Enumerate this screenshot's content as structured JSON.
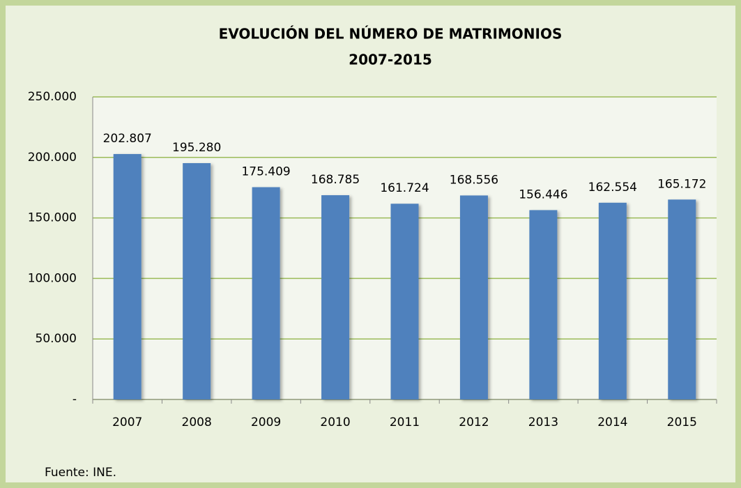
{
  "chart_data": {
    "type": "bar",
    "title": "EVOLUCIÓN DEL NÚMERO DE MATRIMONIOS",
    "subtitle": "2007-2015",
    "categories": [
      "2007",
      "2008",
      "2009",
      "2010",
      "2011",
      "2012",
      "2013",
      "2014",
      "2015"
    ],
    "values": [
      202807,
      195280,
      175409,
      168785,
      161724,
      168556,
      156446,
      162554,
      165172
    ],
    "value_labels": [
      "202.807",
      "195.280",
      "175.409",
      "168.785",
      "161.724",
      "168.556",
      "156.446",
      "162.554",
      "165.172"
    ],
    "color": "#4f81bd",
    "ylim": [
      0,
      250000
    ],
    "yticks": [
      {
        "value": 0,
        "label": "-"
      },
      {
        "value": 50000,
        "label": "50.000"
      },
      {
        "value": 100000,
        "label": "100.000"
      },
      {
        "value": 150000,
        "label": "150.000"
      },
      {
        "value": 200000,
        "label": "200.000"
      },
      {
        "value": 250000,
        "label": "250.000"
      }
    ],
    "grid": true,
    "source": "Fuente: INE."
  }
}
